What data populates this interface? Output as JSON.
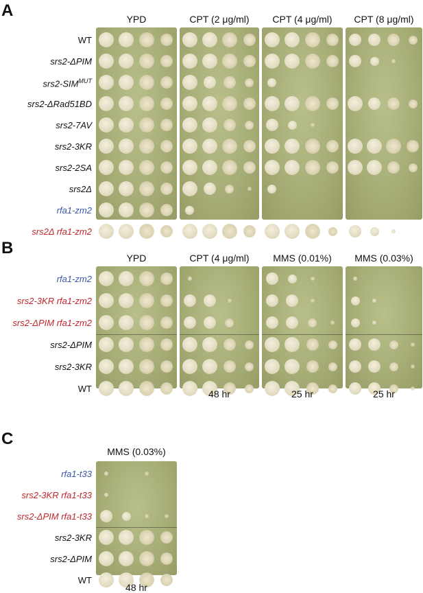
{
  "panels": {
    "A": {
      "letter": "A",
      "columns": [
        "YPD",
        "CPT (2 μg/ml)",
        "CPT (4 μg/ml)",
        "CPT (8 μg/ml)"
      ],
      "strains": [
        {
          "label": "WT",
          "color": "#111111",
          "italic": false,
          "sup": ""
        },
        {
          "label": "srs2-ΔPIM",
          "color": "#111111",
          "italic": true,
          "sup": ""
        },
        {
          "label": "srs2-SIM",
          "color": "#111111",
          "italic": true,
          "sup": "MUT"
        },
        {
          "label": "srs2-ΔRad51BD",
          "color": "#111111",
          "italic": true,
          "sup": ""
        },
        {
          "label": "srs2-7AV",
          "color": "#111111",
          "italic": true,
          "sup": ""
        },
        {
          "label": "srs2-3KR",
          "color": "#111111",
          "italic": true,
          "sup": ""
        },
        {
          "label": "srs2-2SA",
          "color": "#111111",
          "italic": true,
          "sup": ""
        },
        {
          "label": "srs2Δ",
          "color": "#111111",
          "italic": true,
          "sup": ""
        },
        {
          "label": "rfa1-zm2",
          "color": "#3a57a8",
          "italic": true,
          "sup": ""
        },
        {
          "label": "srs2Δ rfa1-zm2",
          "color": "#c0262c",
          "italic": true,
          "sup": ""
        }
      ]
    },
    "B": {
      "letter": "B",
      "columns": [
        "YPD",
        "CPT (4 μg/ml)",
        "MMS (0.01%)",
        "MMS (0.03%)"
      ],
      "times": [
        "48 hr",
        "25 hr",
        "25 hr"
      ],
      "strains": [
        {
          "label": "rfa1-zm2",
          "color": "#3a57a8",
          "italic": true,
          "sup": ""
        },
        {
          "label": "srs2-3KR rfa1-zm2",
          "color": "#c0262c",
          "italic": true,
          "sup": ""
        },
        {
          "label": "srs2-ΔPIM rfa1-zm2",
          "color": "#c0262c",
          "italic": true,
          "sup": ""
        },
        {
          "label": "srs2-ΔPIM",
          "color": "#111111",
          "italic": true,
          "sup": ""
        },
        {
          "label": "srs2-3KR",
          "color": "#111111",
          "italic": true,
          "sup": ""
        },
        {
          "label": "WT",
          "color": "#111111",
          "italic": false,
          "sup": ""
        }
      ]
    },
    "C": {
      "letter": "C",
      "columns": [
        "MMS (0.03%)"
      ],
      "times": [
        "48 hr"
      ],
      "strains": [
        {
          "label": "rfa1-t33",
          "color": "#3a57a8",
          "italic": true,
          "sup": ""
        },
        {
          "label": "srs2-3KR rfa1-t33",
          "color": "#c0262c",
          "italic": true,
          "sup": ""
        },
        {
          "label": "srs2-ΔPIM rfa1-t33",
          "color": "#c0262c",
          "italic": true,
          "sup": ""
        },
        {
          "label": "srs2-3KR",
          "color": "#111111",
          "italic": true,
          "sup": ""
        },
        {
          "label": "srs2-ΔPIM",
          "color": "#111111",
          "italic": true,
          "sup": ""
        },
        {
          "label": "WT",
          "color": "#111111",
          "italic": false,
          "sup": ""
        }
      ]
    }
  },
  "growth": {
    "A": [
      [
        [
          4,
          4,
          4,
          3
        ],
        [
          4,
          4,
          4,
          3
        ],
        [
          4,
          4,
          4,
          3
        ],
        [
          3,
          3,
          3,
          2
        ]
      ],
      [
        [
          4,
          4,
          4,
          3
        ],
        [
          4,
          4,
          4,
          3
        ],
        [
          4,
          4,
          4,
          3
        ],
        [
          3,
          2,
          1,
          0
        ]
      ],
      [
        [
          4,
          4,
          4,
          3
        ],
        [
          4,
          3,
          3,
          2
        ],
        [
          2,
          0,
          0,
          0
        ],
        [
          0,
          0,
          0,
          0
        ]
      ],
      [
        [
          4,
          4,
          4,
          3
        ],
        [
          4,
          4,
          4,
          3
        ],
        [
          4,
          4,
          4,
          3
        ],
        [
          4,
          3,
          3,
          2
        ]
      ],
      [
        [
          4,
          4,
          4,
          3
        ],
        [
          4,
          4,
          3,
          2
        ],
        [
          3,
          2,
          1,
          0
        ],
        [
          0,
          0,
          0,
          0
        ]
      ],
      [
        [
          4,
          4,
          4,
          3
        ],
        [
          4,
          4,
          4,
          3
        ],
        [
          4,
          4,
          4,
          3
        ],
        [
          4,
          4,
          4,
          3
        ]
      ],
      [
        [
          4,
          4,
          4,
          3
        ],
        [
          4,
          4,
          4,
          3
        ],
        [
          4,
          4,
          4,
          3
        ],
        [
          4,
          4,
          3,
          2
        ]
      ],
      [
        [
          4,
          4,
          4,
          3
        ],
        [
          4,
          3,
          2,
          1
        ],
        [
          2,
          0,
          0,
          0
        ],
        [
          0,
          0,
          0,
          0
        ]
      ],
      [
        [
          4,
          4,
          4,
          3
        ],
        [
          2,
          0,
          0,
          0
        ],
        [
          0,
          0,
          0,
          0
        ],
        [
          0,
          0,
          0,
          0
        ]
      ],
      [
        [
          4,
          4,
          4,
          3
        ],
        [
          4,
          4,
          4,
          3
        ],
        [
          4,
          4,
          4,
          2
        ],
        [
          3,
          2,
          1,
          0
        ]
      ]
    ],
    "B": [
      [
        [
          4,
          4,
          4,
          3
        ],
        [
          1,
          0,
          0,
          0
        ],
        [
          3,
          2,
          1,
          0
        ],
        [
          1,
          0,
          0,
          0
        ]
      ],
      [
        [
          4,
          4,
          4,
          3
        ],
        [
          3,
          3,
          1,
          0
        ],
        [
          3,
          3,
          1,
          0
        ],
        [
          2,
          1,
          0,
          0
        ]
      ],
      [
        [
          4,
          4,
          4,
          3
        ],
        [
          3,
          3,
          2,
          0
        ],
        [
          3,
          3,
          2,
          1
        ],
        [
          2,
          1,
          0,
          0
        ]
      ],
      [
        [
          4,
          4,
          4,
          3
        ],
        [
          4,
          4,
          3,
          2
        ],
        [
          4,
          4,
          3,
          2
        ],
        [
          3,
          3,
          2,
          1
        ]
      ],
      [
        [
          4,
          4,
          4,
          3
        ],
        [
          4,
          4,
          3,
          2
        ],
        [
          4,
          4,
          3,
          2
        ],
        [
          3,
          3,
          2,
          1
        ]
      ],
      [
        [
          4,
          4,
          4,
          3
        ],
        [
          4,
          4,
          3,
          2
        ],
        [
          4,
          4,
          3,
          2
        ],
        [
          3,
          3,
          2,
          1
        ]
      ]
    ],
    "C": [
      [
        [
          1,
          0,
          1,
          0
        ]
      ],
      [
        [
          1,
          0,
          0,
          0
        ]
      ],
      [
        [
          3,
          2,
          1,
          1
        ]
      ],
      [
        [
          4,
          4,
          4,
          3
        ]
      ],
      [
        [
          4,
          4,
          4,
          3
        ]
      ],
      [
        [
          4,
          4,
          4,
          3
        ]
      ]
    ]
  }
}
